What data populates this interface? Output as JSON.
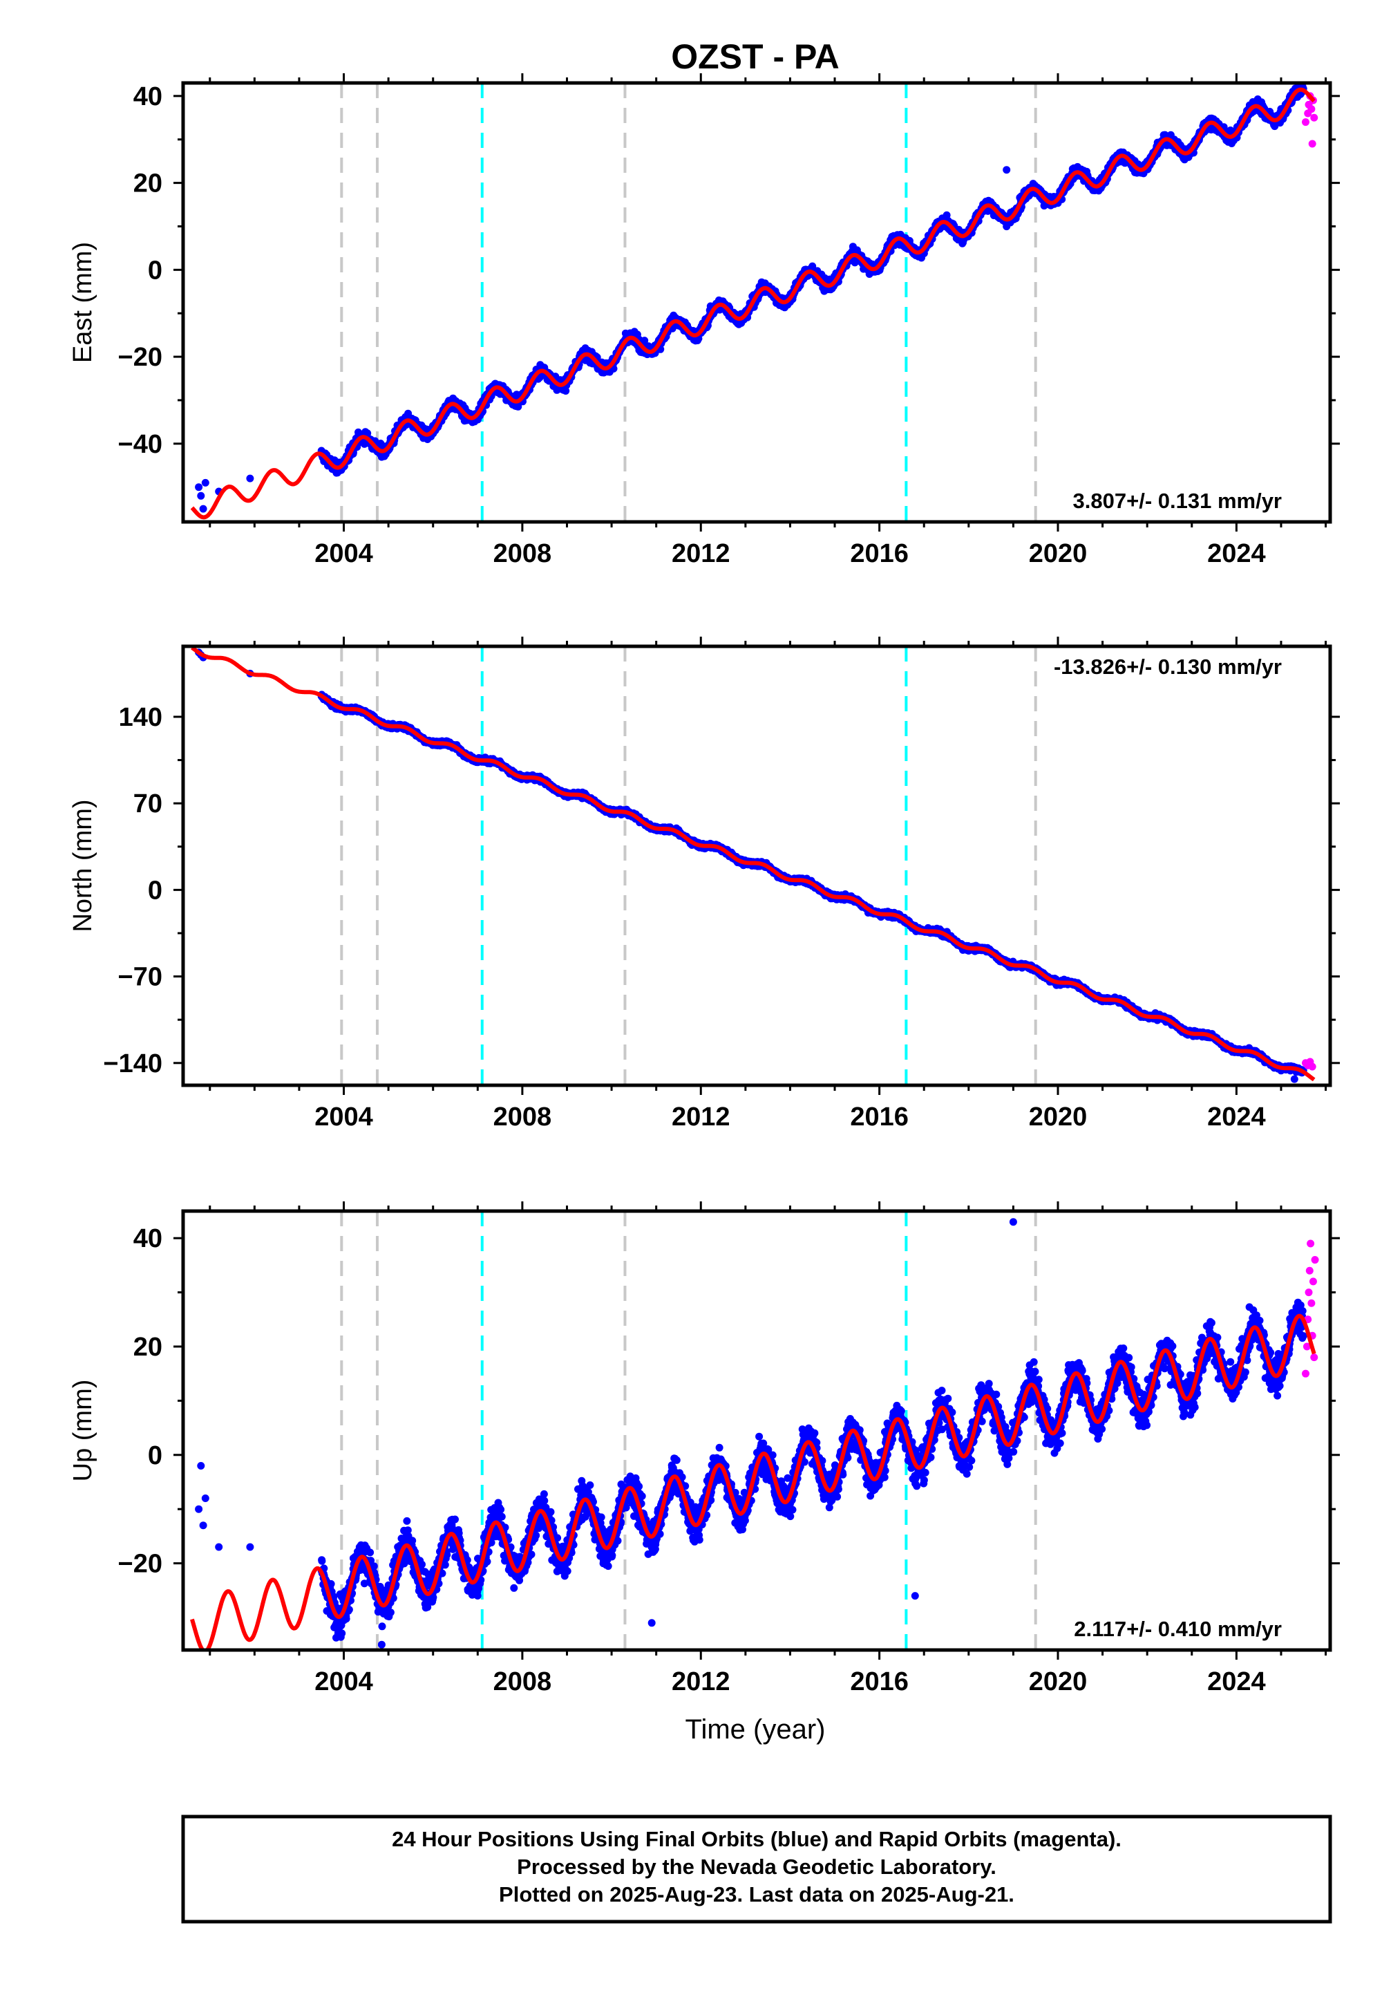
{
  "title": "OZST - PA",
  "x_axis": {
    "label": "Time (year)",
    "range": [
      2000.4,
      2026.1
    ],
    "ticks": [
      2004,
      2008,
      2012,
      2016,
      2020,
      2024
    ]
  },
  "event_lines": {
    "gray": [
      2003.95,
      2004.75,
      2010.3,
      2019.5
    ],
    "cyan": [
      2007.1,
      2016.6
    ]
  },
  "colors": {
    "final_orbits": "#0000ff",
    "rapid_orbits": "#ff00ff",
    "model_fit": "#ff0000",
    "gray_event": "#c8c8c8",
    "cyan_event": "#00ffff"
  },
  "chart_data": [
    {
      "type": "scatter",
      "component": "east",
      "ylabel": "East (mm)",
      "ylim": [
        -58,
        43
      ],
      "yticks": [
        -40,
        -20,
        0,
        20,
        40
      ],
      "rate_text": "3.807+/- 0.131 mm/yr",
      "rate_position": "bottom-right",
      "data_start": 2003.5,
      "trend": {
        "rate": 3.807,
        "value_at_2014": -4.5
      },
      "seasonal": {
        "amplitude": 2.5,
        "scatter": 1.6
      },
      "early_points": [
        [
          2000.75,
          -50
        ],
        [
          2000.8,
          -52
        ],
        [
          2000.85,
          -55
        ],
        [
          2000.9,
          -49
        ],
        [
          2001.2,
          -51
        ],
        [
          2001.9,
          -48
        ]
      ],
      "rapid_points": [
        [
          2025.55,
          34
        ],
        [
          2025.6,
          36
        ],
        [
          2025.62,
          38
        ],
        [
          2025.65,
          40
        ],
        [
          2025.68,
          37
        ],
        [
          2025.7,
          29
        ],
        [
          2025.72,
          39
        ],
        [
          2025.74,
          35
        ]
      ],
      "outliers": [
        [
          2018.85,
          23
        ]
      ]
    },
    {
      "type": "scatter",
      "component": "north",
      "ylabel": "North (mm)",
      "ylim": [
        -158,
        197
      ],
      "yticks": [
        -140,
        -70,
        0,
        70,
        140
      ],
      "rate_text": "-13.826+/- 0.130 mm/yr",
      "rate_position": "top-right",
      "data_start": 2003.5,
      "trend": {
        "rate": -13.826,
        "value_at_2014": 10
      },
      "seasonal": {
        "amplitude": 2.2,
        "scatter": 2.5
      },
      "early_points": [
        [
          2000.75,
          192
        ],
        [
          2000.8,
          190
        ],
        [
          2000.85,
          188
        ],
        [
          2001.9,
          175
        ]
      ],
      "rapid_points": [
        [
          2025.55,
          -140
        ],
        [
          2025.6,
          -142
        ],
        [
          2025.65,
          -139
        ],
        [
          2025.7,
          -143
        ]
      ],
      "outliers": [
        [
          2025.3,
          -153
        ]
      ]
    },
    {
      "type": "scatter",
      "component": "up",
      "ylabel": "Up (mm)",
      "ylim": [
        -36,
        45
      ],
      "yticks": [
        -20,
        0,
        20,
        40
      ],
      "rate_text": "2.117+/- 0.410 mm/yr",
      "rate_position": "bottom-right",
      "data_start": 2003.5,
      "trend": {
        "rate": 2.117,
        "value_at_2014": -3.5
      },
      "seasonal": {
        "amplitude": 5,
        "scatter": 4.2
      },
      "early_points": [
        [
          2000.75,
          -10
        ],
        [
          2000.8,
          -2
        ],
        [
          2000.85,
          -13
        ],
        [
          2000.9,
          -8
        ],
        [
          2001.2,
          -17
        ],
        [
          2001.9,
          -17
        ]
      ],
      "rapid_points": [
        [
          2025.55,
          15
        ],
        [
          2025.58,
          20
        ],
        [
          2025.6,
          25
        ],
        [
          2025.62,
          30
        ],
        [
          2025.64,
          34
        ],
        [
          2025.66,
          39
        ],
        [
          2025.68,
          28
        ],
        [
          2025.7,
          22
        ],
        [
          2025.72,
          32
        ],
        [
          2025.74,
          18
        ],
        [
          2025.76,
          36
        ]
      ],
      "outliers": [
        [
          2019.0,
          43
        ],
        [
          2004.85,
          -35
        ],
        [
          2010.9,
          -31
        ],
        [
          2016.8,
          -26
        ]
      ]
    }
  ],
  "footer": {
    "line1": "24 Hour Positions Using Final Orbits (blue) and Rapid Orbits (magenta).",
    "line2": "Processed by the Nevada Geodetic Laboratory.",
    "line3": "Plotted on 2025-Aug-23. Last data on 2025-Aug-21."
  }
}
